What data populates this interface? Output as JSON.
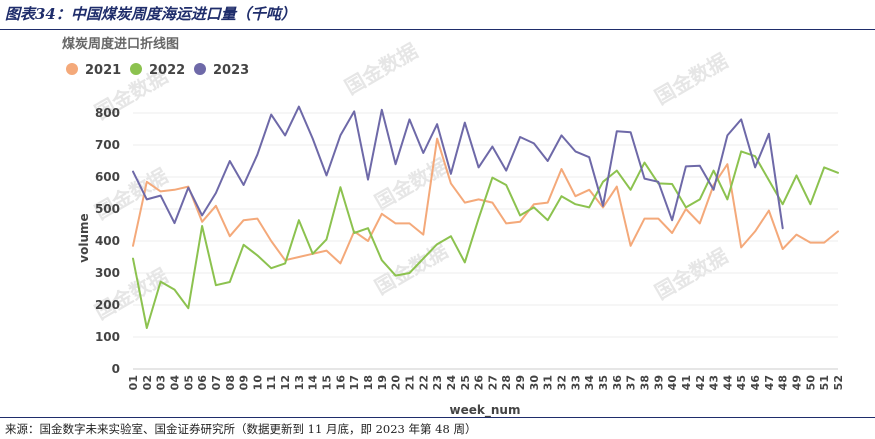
{
  "figure_title": "图表34：中国煤炭周度海运进口量（千吨）",
  "source": "来源：国金数字未来实验室、国金证券研究所（数据更新到 11 月底，即 2023 年第 48 周）",
  "watermark": "国金数据",
  "colors": {
    "2021": "#f4a97a",
    "2022": "#8cc24f",
    "2023": "#6e69a8",
    "figure_title": "#1f2d6b",
    "chart_title": "#666666",
    "grid": "#ececec"
  },
  "chart_data": {
    "type": "line",
    "title": "煤炭周度进口折线图",
    "xlabel": "week_num",
    "ylabel": "volume",
    "ylim": [
      0,
      850
    ],
    "yticks": [
      0,
      100,
      200,
      300,
      400,
      500,
      600,
      700,
      800
    ],
    "grid": "horizontal",
    "legend": "top-left",
    "categories": [
      "01",
      "02",
      "03",
      "04",
      "05",
      "06",
      "07",
      "08",
      "09",
      "10",
      "11",
      "12",
      "13",
      "14",
      "15",
      "16",
      "17",
      "18",
      "19",
      "20",
      "21",
      "22",
      "23",
      "24",
      "25",
      "26",
      "27",
      "28",
      "29",
      "30",
      "31",
      "32",
      "33",
      "34",
      "35",
      "36",
      "37",
      "38",
      "39",
      "40",
      "41",
      "42",
      "43",
      "44",
      "45",
      "46",
      "47",
      "48",
      "49",
      "50",
      "51",
      "52"
    ],
    "x_tick_labels": [
      "01",
      "02",
      "03",
      "04",
      "05",
      "06",
      "07",
      "08",
      "09",
      "10",
      "11",
      "12",
      "13",
      "14",
      "15",
      "16",
      "17",
      "18",
      "19",
      "20",
      "21",
      "22",
      "23",
      "24",
      "25",
      "26",
      "27",
      "28",
      "29",
      "30",
      "31",
      "32",
      "33",
      "34",
      "35",
      "36",
      "37",
      "38",
      "39",
      "40",
      "41",
      "42",
      "43",
      "44",
      "45",
      "46",
      "47",
      "48",
      "49",
      "50",
      "51",
      "52"
    ],
    "series": [
      {
        "name": "2021",
        "color": "#f4a97a",
        "values": [
          385,
          585,
          555,
          560,
          570,
          460,
          510,
          415,
          465,
          470,
          400,
          340,
          350,
          360,
          370,
          330,
          430,
          400,
          485,
          455,
          455,
          420,
          720,
          580,
          520,
          530,
          520,
          455,
          460,
          515,
          520,
          625,
          540,
          560,
          505,
          570,
          385,
          470,
          470,
          425,
          500,
          455,
          575,
          640,
          380,
          430,
          495,
          375,
          420,
          395,
          395,
          430
        ]
      },
      {
        "name": "2022",
        "color": "#8cc24f",
        "values": [
          345,
          128,
          273,
          248,
          190,
          447,
          262,
          272,
          388,
          355,
          315,
          330,
          465,
          360,
          405,
          568,
          425,
          440,
          340,
          292,
          300,
          345,
          390,
          415,
          333,
          470,
          598,
          575,
          480,
          505,
          465,
          540,
          515,
          505,
          585,
          620,
          560,
          645,
          580,
          578,
          505,
          530,
          620,
          530,
          680,
          665,
          590,
          515,
          605,
          515,
          630,
          613
        ]
      },
      {
        "name": "2023",
        "color": "#6e69a8",
        "values": [
          617,
          530,
          542,
          456,
          567,
          480,
          550,
          650,
          575,
          670,
          795,
          730,
          820,
          720,
          605,
          730,
          805,
          592,
          810,
          640,
          780,
          675,
          765,
          610,
          770,
          630,
          695,
          620,
          725,
          705,
          650,
          730,
          680,
          662,
          510,
          743,
          740,
          595,
          585,
          465,
          633,
          635,
          560,
          730,
          780,
          630,
          735,
          440,
          null,
          null,
          null,
          null
        ]
      }
    ]
  }
}
